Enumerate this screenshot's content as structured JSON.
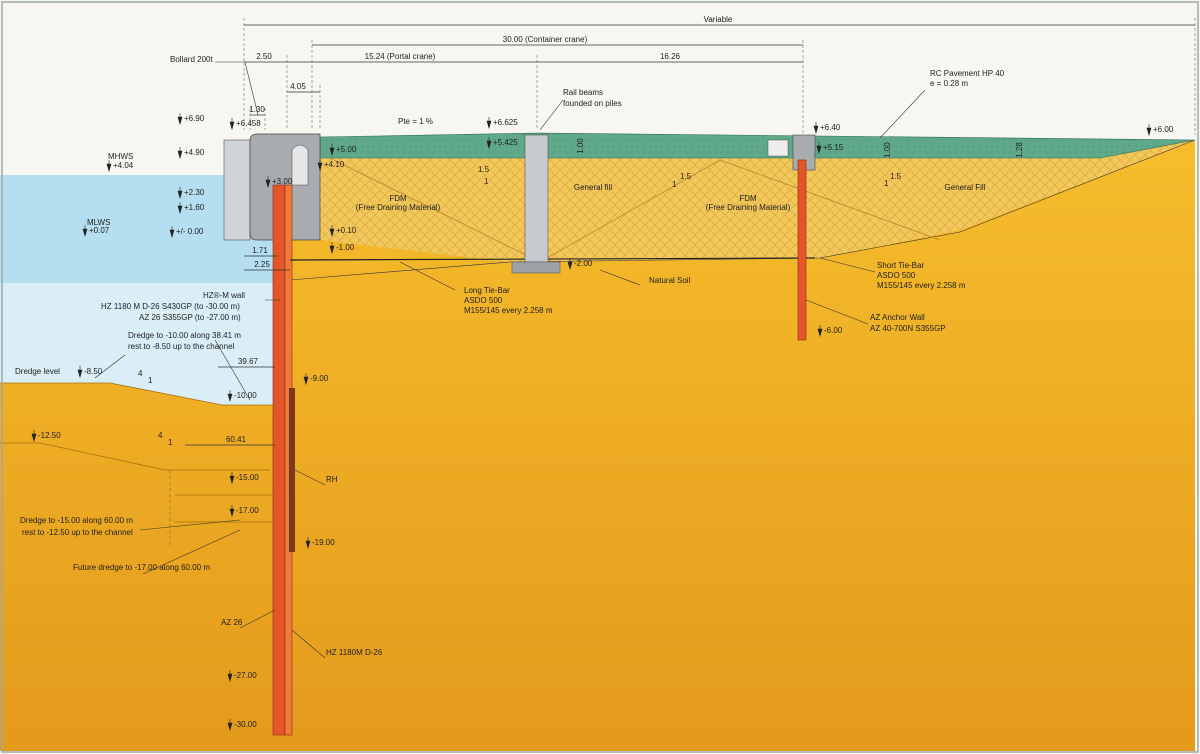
{
  "dimensions": [
    "Variable",
    "30.00 (Container crane)",
    "2.50",
    "15.24 (Portal crane)",
    "16.26",
    "4.05",
    "1.30",
    "1.71",
    "2.25",
    "39.67",
    "60.41",
    "1.00",
    "1.00",
    "1.28"
  ],
  "levels": [
    "+6.90",
    "+6.458",
    "+6.625",
    "+6.40",
    "+6.00",
    "+4.90",
    "+5.425",
    "+5.00",
    "+5.15",
    "+4.04",
    "+4.10",
    "+3.00",
    "+2.30",
    "+1.60",
    "+0.07",
    "+/- 0.00",
    "+0.10",
    "-1.00",
    "-2.00",
    "-6.00",
    "-8.50",
    "-9.00",
    "-10.00",
    "-12.50",
    "-15.00",
    "-17.00",
    "-19.00",
    "-27.00",
    "-30.00"
  ],
  "slopes": [
    "1.5",
    "1",
    "1.5",
    "1",
    "1.5",
    "1",
    "4",
    "1",
    "4",
    "1"
  ],
  "annotations": [
    "Bollard 200t",
    "RC Pavement HP 40",
    "e = 0.28 m",
    "Rail beams",
    "founded on piles",
    "Pte = 1 %",
    "MHWS",
    "MLWS",
    "General fill",
    "General Fill",
    "FDM",
    "(Free Draining Material)",
    "FDM",
    "(Free Draining Material)",
    "Long Tie-Bar",
    "ASDO 500",
    "M155/145 every 2.258 m",
    "Natural Soil",
    "Short Tie-Bar",
    "ASDO 500",
    "M155/145 every 2.258 m",
    "HZ®-M wall",
    "HZ 1180 M D-26 S430GP (to -30.00 m)",
    "AZ 26 S355GP (to -27.00 m)",
    "AZ Anchor Wall",
    "AZ 40-700N S355GP",
    "Dredge to -10.00 along 38.41 m",
    "rest to -8.50 up to the channel",
    "Dredge level",
    "RH",
    "Dredge to -15.00 along 60.00 m",
    "rest to -12.50 up to the channel",
    "Future dredge to -17.00 along 60.00 m",
    "AZ 26",
    "HZ 1180M D-26"
  ]
}
